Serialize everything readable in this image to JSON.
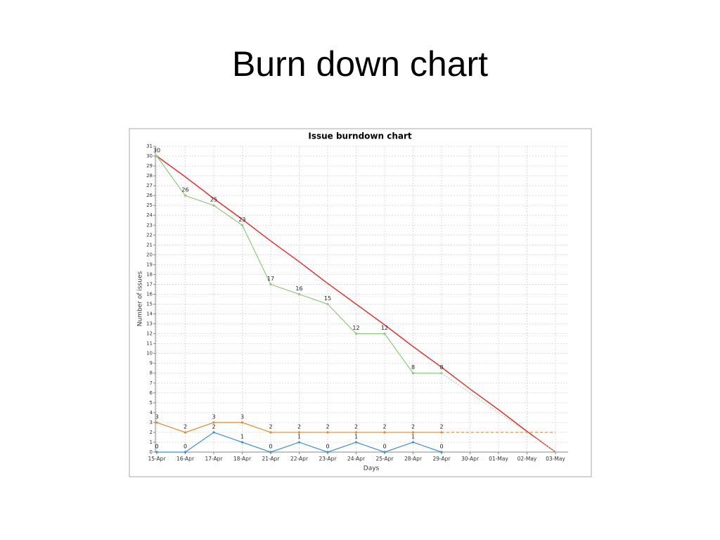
{
  "slide_title": "Burn down chart",
  "chart_data": {
    "type": "line",
    "title": "Issue burndown chart",
    "xlabel": "Days",
    "ylabel": "Number of issues",
    "categories": [
      "15-Apr",
      "16-Apr",
      "17-Apr",
      "18-Apr",
      "21-Apr",
      "22-Apr",
      "23-Apr",
      "24-Apr",
      "25-Apr",
      "28-Apr",
      "29-Apr",
      "30-Apr",
      "01-May",
      "02-May",
      "03-May"
    ],
    "ylim": [
      0,
      31
    ],
    "yticks": [
      0,
      1,
      2,
      3,
      4,
      5,
      6,
      7,
      8,
      9,
      10,
      11,
      12,
      13,
      14,
      15,
      16,
      17,
      18,
      19,
      20,
      21,
      22,
      23,
      24,
      25,
      26,
      27,
      28,
      29,
      30,
      31
    ],
    "grid": true,
    "series": [
      {
        "color": "#e8312f",
        "dash": "solid",
        "labels": false,
        "values": [
          30,
          27.9,
          25.7,
          23.6,
          21.4,
          19.3,
          17.1,
          15,
          12.9,
          10.7,
          8.6,
          6.4,
          4.3,
          2.1,
          0
        ]
      },
      {
        "color": "#8ec97a",
        "dash": "solid",
        "labels": true,
        "values": [
          30,
          26,
          25,
          23,
          17,
          16,
          15,
          12,
          12,
          8,
          8,
          null,
          null,
          null,
          null
        ]
      },
      {
        "color": "#b8d8b0",
        "dash": "dotted",
        "labels": false,
        "values": [
          null,
          null,
          null,
          null,
          null,
          null,
          null,
          null,
          null,
          null,
          8,
          6,
          4,
          2,
          0
        ]
      },
      {
        "color": "#e08a2c",
        "dash": "solid",
        "labels": true,
        "values": [
          3,
          2,
          3,
          3,
          2,
          2,
          2,
          2,
          2,
          2,
          2,
          null,
          null,
          null,
          null
        ]
      },
      {
        "color": "#e08a2c",
        "dash": "dashed",
        "labels": false,
        "values": [
          null,
          null,
          null,
          null,
          null,
          null,
          null,
          null,
          null,
          null,
          2,
          2,
          2,
          2,
          2
        ]
      },
      {
        "color": "#3a8fd6",
        "dash": "solid",
        "labels": true,
        "values": [
          0,
          0,
          2,
          1,
          0,
          1,
          0,
          1,
          0,
          1,
          0,
          null,
          null,
          null,
          null
        ]
      }
    ]
  }
}
